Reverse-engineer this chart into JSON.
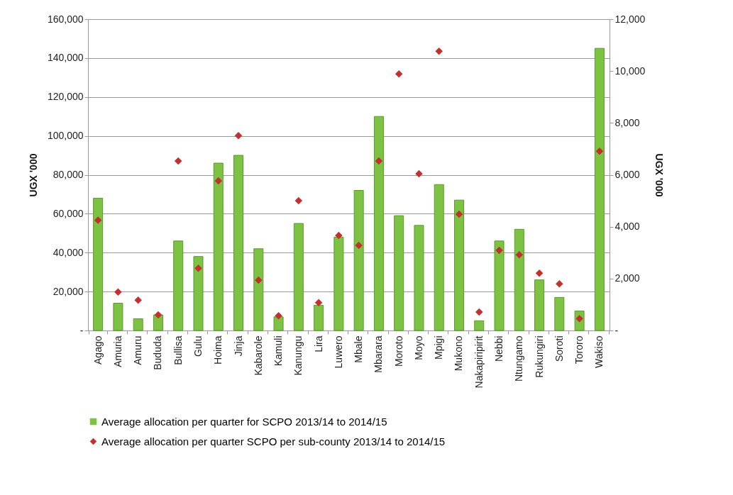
{
  "chart_data": {
    "type": "bar",
    "categories": [
      "Agago",
      "Amuria",
      "Amuru",
      "Bududa",
      "Bullisa",
      "Gulu",
      "Hoima",
      "Jinja",
      "Kabarole",
      "Kamuli",
      "Kanungu",
      "Lira",
      "Luwero",
      "Mbale",
      "Mbarara",
      "Moroto",
      "Moyo",
      "Mpigi",
      "Mukono",
      "Nakapiripirit",
      "Nebbi",
      "Ntungamo",
      "Rukungiri",
      "Soroti",
      "Tororo",
      "Wakiso"
    ],
    "series": [
      {
        "name": "Average allocation per quarter for SCPO 2013/14 to 2014/15",
        "color": "#7dc242",
        "values": [
          68000,
          14000,
          6000,
          8000,
          46000,
          38000,
          86000,
          90000,
          42000,
          7000,
          55000,
          13000,
          48000,
          72000,
          110000,
          59000,
          54000,
          75000,
          67000,
          5000,
          46000,
          52000,
          26000,
          17000,
          10000,
          145000
        ]
      },
      {
        "name": "Average allocation per quarter SCPO per sub-county 2013/14 to 2014/15",
        "type": "scatter",
        "axis": "y2",
        "color": "#c0312f",
        "values": [
          4250,
          1480,
          1170,
          600,
          6530,
          2400,
          5770,
          7510,
          1940,
          570,
          5000,
          1070,
          3660,
          3280,
          6530,
          9890,
          6040,
          10760,
          4480,
          710,
          3090,
          2920,
          2210,
          1800,
          460,
          6910
        ]
      }
    ],
    "ylabel": "UGX '000",
    "y2label": "UGX '000",
    "ylim": [
      0,
      160000
    ],
    "yticks": [
      {
        "value": 0,
        "label": "-"
      },
      {
        "value": 20000,
        "label": "20,000"
      },
      {
        "value": 40000,
        "label": "40,000"
      },
      {
        "value": 60000,
        "label": "60,000"
      },
      {
        "value": 80000,
        "label": "80,000"
      },
      {
        "value": 100000,
        "label": "100,000"
      },
      {
        "value": 120000,
        "label": "120,000"
      },
      {
        "value": 140000,
        "label": "140,000"
      },
      {
        "value": 160000,
        "label": "160,000"
      }
    ],
    "y2lim": [
      0,
      12000
    ],
    "y2ticks": [
      {
        "value": 0,
        "label": "-"
      },
      {
        "value": 2000,
        "label": "2,000"
      },
      {
        "value": 4000,
        "label": "4,000"
      },
      {
        "value": 6000,
        "label": "6,000"
      },
      {
        "value": 8000,
        "label": "8,000"
      },
      {
        "value": 10000,
        "label": "10,000"
      },
      {
        "value": 12000,
        "label": "12,000"
      }
    ],
    "grid": "y",
    "legend": "bottom",
    "marker": "diamond"
  }
}
